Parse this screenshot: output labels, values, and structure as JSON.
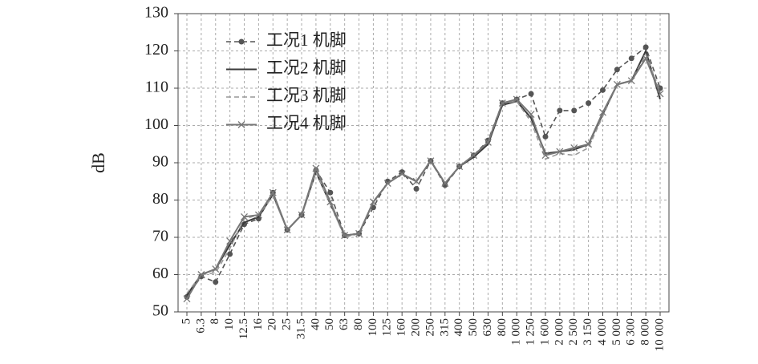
{
  "chart_data": {
    "type": "line",
    "y_label": "dB",
    "categories": [
      "5",
      "6.3",
      "8",
      "10",
      "12.5",
      "16",
      "20",
      "25",
      "31.5",
      "40",
      "50",
      "63",
      "80",
      "100",
      "125",
      "160",
      "200",
      "250",
      "315",
      "400",
      "500",
      "630",
      "800",
      "1 000",
      "1 250",
      "1 600",
      "2 000",
      "2 500",
      "3 150",
      "4 000",
      "5 000",
      "6 300",
      "8 000",
      "10 000"
    ],
    "series": [
      {
        "name": "工况1 机脚",
        "color": "#555555",
        "linestyle": "dashed",
        "marker": "circle",
        "values": [
          54,
          59.5,
          58,
          65.5,
          73.5,
          75,
          82,
          72,
          76,
          88,
          82,
          70.5,
          71,
          78,
          85,
          87.5,
          83,
          90.5,
          84,
          89,
          92,
          96,
          106,
          107,
          108.5,
          97,
          104,
          104,
          106,
          109.5,
          115,
          118,
          121,
          110
        ]
      },
      {
        "name": "工况2 机脚",
        "color": "#3a3a3a",
        "linestyle": "solid",
        "marker": "none",
        "values": [
          54.5,
          60,
          61.5,
          68,
          74,
          75.5,
          81.5,
          72,
          76,
          87.5,
          79,
          70.5,
          71,
          79.5,
          84.5,
          87,
          85,
          90.5,
          84.5,
          89,
          91.5,
          95,
          105.5,
          106.5,
          102,
          92.5,
          93,
          93.5,
          95,
          103,
          111,
          112,
          120,
          107
        ]
      },
      {
        "name": "工况3 机脚",
        "color": "#999999",
        "linestyle": "dashed",
        "marker": "none",
        "values": [
          55,
          60,
          60.5,
          67,
          75,
          76,
          81,
          72,
          76,
          87.5,
          79,
          70,
          71,
          79.5,
          84.5,
          87,
          85,
          90.5,
          84.5,
          89,
          92,
          95.5,
          106,
          106.5,
          101,
          91,
          92.5,
          92,
          94,
          102.5,
          111,
          112,
          119,
          109
        ]
      },
      {
        "name": "工况4 机脚",
        "color": "#777777",
        "linestyle": "solid",
        "marker": "x",
        "values": [
          53.5,
          60,
          61.5,
          69,
          75.5,
          76,
          82,
          72,
          76,
          88.5,
          79.5,
          70.5,
          71,
          79.5,
          84.5,
          87,
          85,
          90.5,
          84.5,
          89,
          92,
          95.5,
          106,
          107,
          103,
          92,
          93,
          94,
          95,
          103.5,
          111,
          112,
          118,
          108.5
        ]
      }
    ],
    "ylim": [
      50,
      130
    ],
    "yticks": [
      50,
      60,
      70,
      80,
      90,
      100,
      110,
      120,
      130
    ],
    "grid": true,
    "legend": "upper left"
  }
}
